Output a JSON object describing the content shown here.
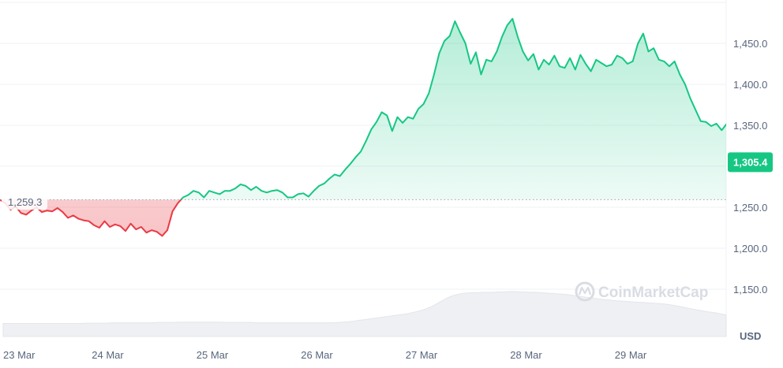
{
  "chart_data": {
    "type": "area",
    "currency_label": "USD",
    "baseline_label": "1,259.3",
    "baseline_value": 1259.3,
    "current_label": "1,305.4",
    "current_value": 1305.4,
    "watermark": "CoinMarketCap",
    "ylim": [
      1100,
      1500
    ],
    "yticks": [
      {
        "value": 1450,
        "label": "1,450.0"
      },
      {
        "value": 1400,
        "label": "1,400.0"
      },
      {
        "value": 1350,
        "label": "1,350.0"
      },
      {
        "value": 1250,
        "label": "1,250.0"
      },
      {
        "value": 1200,
        "label": "1,200.0"
      },
      {
        "value": 1150,
        "label": "1,150.0"
      }
    ],
    "xlim": [
      0,
      7.0
    ],
    "xticks": [
      {
        "value": 0,
        "label": "23 Mar"
      },
      {
        "value": 1,
        "label": "24 Mar"
      },
      {
        "value": 2,
        "label": "25 Mar"
      },
      {
        "value": 3,
        "label": "26 Mar"
      },
      {
        "value": 4,
        "label": "27 Mar"
      },
      {
        "value": 5,
        "label": "28 Mar"
      },
      {
        "value": 6,
        "label": "29 Mar"
      }
    ],
    "colors": {
      "up": "#16c784",
      "down": "#ea3943",
      "label_bg": "#16c784"
    },
    "series": [
      {
        "x": [
          0.0,
          0.05,
          0.1,
          0.15,
          0.2,
          0.25,
          0.3,
          0.35,
          0.4,
          0.45,
          0.5,
          0.55,
          0.6,
          0.65,
          0.7,
          0.75,
          0.8,
          0.85,
          0.9,
          0.95,
          1.0,
          1.05,
          1.1,
          1.15,
          1.2,
          1.25,
          1.3,
          1.35,
          1.4,
          1.45,
          1.5,
          1.55,
          1.6,
          1.65,
          1.7,
          1.75,
          1.8,
          1.85,
          1.9,
          1.95,
          2.0,
          2.05,
          2.1,
          2.15,
          2.2,
          2.25,
          2.3,
          2.35,
          2.4,
          2.45,
          2.5,
          2.55,
          2.6,
          2.65,
          2.7,
          2.75,
          2.8,
          2.85,
          2.9,
          2.95,
          3.0,
          3.05,
          3.1,
          3.15,
          3.2,
          3.25,
          3.3,
          3.35,
          3.4,
          3.45,
          3.5,
          3.55,
          3.6,
          3.65,
          3.7,
          3.75,
          3.8,
          3.85,
          3.9,
          3.95,
          4.0,
          4.05,
          4.1,
          4.15,
          4.2,
          4.25,
          4.3,
          4.35,
          4.4,
          4.45,
          4.5,
          4.55,
          4.6,
          4.65,
          4.7,
          4.75,
          4.8,
          4.85,
          4.9,
          4.95,
          5.0,
          5.05,
          5.1,
          5.15,
          5.2,
          5.25,
          5.3,
          5.35,
          5.4,
          5.45,
          5.5,
          5.55,
          5.6,
          5.65,
          5.7,
          5.75,
          5.8,
          5.85,
          5.9,
          5.95,
          6.0,
          6.05,
          6.1,
          6.15,
          6.2,
          6.25,
          6.3,
          6.35,
          6.4,
          6.45,
          6.5,
          6.55,
          6.6,
          6.65,
          6.7,
          6.75,
          6.8,
          6.85,
          6.9,
          6.95,
          7.0
        ],
        "values": [
          1259,
          1255,
          1247,
          1251,
          1243,
          1241,
          1246,
          1250,
          1244,
          1246,
          1245,
          1249,
          1244,
          1237,
          1240,
          1236,
          1234,
          1233,
          1228,
          1225,
          1233,
          1226,
          1229,
          1227,
          1221,
          1230,
          1223,
          1226,
          1219,
          1222,
          1220,
          1215,
          1222,
          1245,
          1255,
          1262,
          1265,
          1270,
          1268,
          1262,
          1270,
          1268,
          1266,
          1270,
          1270,
          1273,
          1278,
          1276,
          1271,
          1275,
          1270,
          1268,
          1270,
          1271,
          1268,
          1262,
          1262,
          1266,
          1267,
          1263,
          1270,
          1276,
          1279,
          1285,
          1290,
          1288,
          1296,
          1303,
          1311,
          1318,
          1331,
          1345,
          1354,
          1366,
          1362,
          1343,
          1360,
          1353,
          1360,
          1358,
          1370,
          1376,
          1389,
          1412,
          1438,
          1453,
          1459,
          1477,
          1463,
          1450,
          1425,
          1439,
          1412,
          1430,
          1428,
          1440,
          1458,
          1472,
          1480,
          1458,
          1440,
          1429,
          1437,
          1418,
          1430,
          1424,
          1435,
          1422,
          1420,
          1432,
          1418,
          1436,
          1425,
          1416,
          1430,
          1426,
          1422,
          1424,
          1435,
          1432,
          1425,
          1428,
          1450,
          1462,
          1440,
          1444,
          1430,
          1428,
          1422,
          1428,
          1412,
          1400,
          1383,
          1369,
          1355,
          1354,
          1349,
          1352,
          1344,
          1352,
          1305
        ]
      }
    ],
    "volume": [
      0.1,
      0.1,
      0.1,
      0.1,
      0.1,
      0.1,
      0.1,
      0.1,
      0.1,
      0.1,
      0.1,
      0.1,
      0.1,
      0.1,
      0.1,
      0.1,
      0.11,
      0.11,
      0.11,
      0.11,
      0.11,
      0.12,
      0.12,
      0.12,
      0.12,
      0.12,
      0.12,
      0.12,
      0.12,
      0.12,
      0.13,
      0.13,
      0.13,
      0.13,
      0.14,
      0.14,
      0.14,
      0.14,
      0.14,
      0.14,
      0.14,
      0.14,
      0.14,
      0.13,
      0.13,
      0.13,
      0.13,
      0.13,
      0.13,
      0.12,
      0.12,
      0.12,
      0.12,
      0.12,
      0.12,
      0.12,
      0.12,
      0.12,
      0.12,
      0.12,
      0.12,
      0.12,
      0.12,
      0.12,
      0.12,
      0.13,
      0.14,
      0.15,
      0.17,
      0.19,
      0.21,
      0.23,
      0.25,
      0.27,
      0.29,
      0.31,
      0.33,
      0.35,
      0.37,
      0.4,
      0.43,
      0.47,
      0.52,
      0.58,
      0.66,
      0.74,
      0.82,
      0.88,
      0.92,
      0.95,
      0.96,
      0.97,
      0.97,
      0.98,
      0.98,
      0.98,
      0.99,
      0.99,
      1.0,
      1.0,
      0.99,
      0.99,
      0.98,
      0.98,
      0.97,
      0.96,
      0.95,
      0.94,
      0.93,
      0.92,
      0.9,
      0.88,
      0.86,
      0.84,
      0.82,
      0.8,
      0.78,
      0.77,
      0.75,
      0.74,
      0.73,
      0.72,
      0.71,
      0.7,
      0.69,
      0.68,
      0.67,
      0.66,
      0.65,
      0.63,
      0.61,
      0.58,
      0.55,
      0.52,
      0.49,
      0.47,
      0.44,
      0.42,
      0.4,
      0.37,
      0.34
    ]
  }
}
